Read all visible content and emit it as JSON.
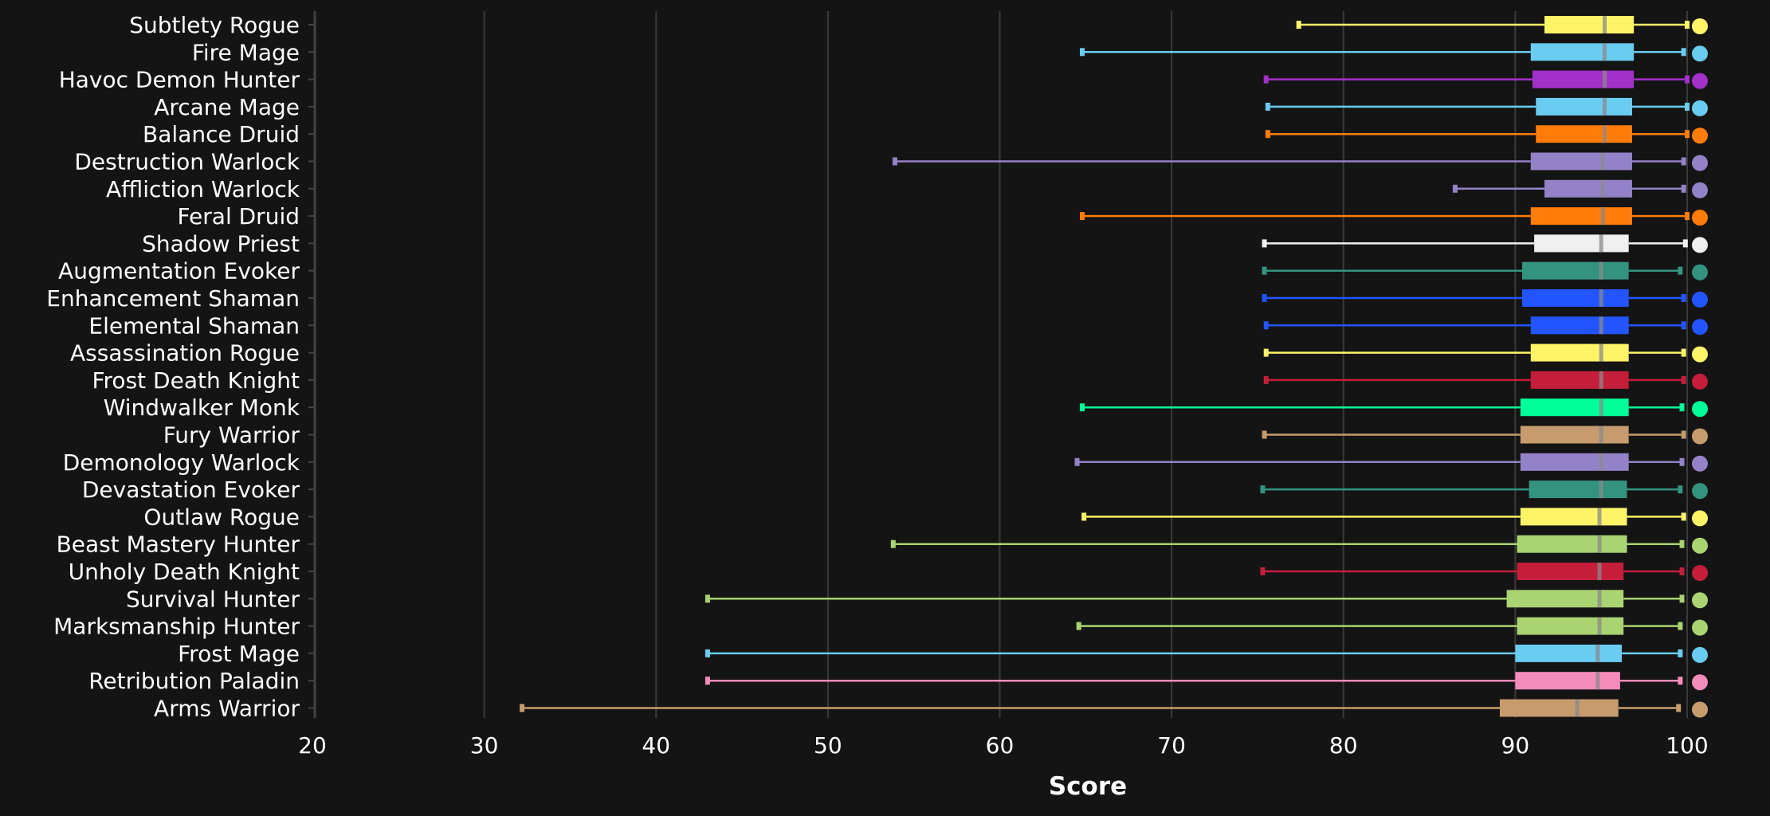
{
  "chart_data": {
    "type": "boxplot",
    "orientation": "horizontal",
    "xlabel": "Score",
    "xlim": [
      20,
      100
    ],
    "xticks": [
      20,
      30,
      40,
      50,
      60,
      70,
      80,
      90,
      100
    ],
    "grid": "vertical",
    "median_color": "#8a8a8a",
    "series": [
      {
        "category": "Subtlety Rogue",
        "color": "#fff468",
        "min": 77.4,
        "q1": 91.7,
        "median": 95.2,
        "q3": 96.9,
        "max": 100.0
      },
      {
        "category": "Fire Mage",
        "color": "#69ccf0",
        "min": 64.8,
        "q1": 90.9,
        "median": 95.2,
        "q3": 96.9,
        "max": 99.8
      },
      {
        "category": "Havoc Demon Hunter",
        "color": "#a330c9",
        "min": 75.5,
        "q1": 91.0,
        "median": 95.2,
        "q3": 96.9,
        "max": 100.0
      },
      {
        "category": "Arcane Mage",
        "color": "#69ccf0",
        "min": 75.6,
        "q1": 91.2,
        "median": 95.2,
        "q3": 96.8,
        "max": 100.0
      },
      {
        "category": "Balance Druid",
        "color": "#ff7c0a",
        "min": 75.6,
        "q1": 91.2,
        "median": 95.2,
        "q3": 96.8,
        "max": 100.0
      },
      {
        "category": "Destruction Warlock",
        "color": "#9482c9",
        "min": 53.9,
        "q1": 90.9,
        "median": 95.1,
        "q3": 96.8,
        "max": 99.8
      },
      {
        "category": "Affliction Warlock",
        "color": "#9482c9",
        "min": 86.5,
        "q1": 91.7,
        "median": 95.1,
        "q3": 96.8,
        "max": 99.8
      },
      {
        "category": "Feral Druid",
        "color": "#ff7c0a",
        "min": 64.8,
        "q1": 90.9,
        "median": 95.1,
        "q3": 96.8,
        "max": 100.0
      },
      {
        "category": "Shadow Priest",
        "color": "#f0f0f0",
        "min": 75.4,
        "q1": 91.1,
        "median": 95.0,
        "q3": 96.6,
        "max": 99.9
      },
      {
        "category": "Augmentation Evoker",
        "color": "#33937f",
        "min": 75.4,
        "q1": 90.4,
        "median": 95.0,
        "q3": 96.6,
        "max": 99.6
      },
      {
        "category": "Enhancement Shaman",
        "color": "#2255ff",
        "min": 75.4,
        "q1": 90.4,
        "median": 95.0,
        "q3": 96.6,
        "max": 99.8
      },
      {
        "category": "Elemental Shaman",
        "color": "#2255ff",
        "min": 75.5,
        "q1": 90.9,
        "median": 95.0,
        "q3": 96.6,
        "max": 99.8
      },
      {
        "category": "Assassination Rogue",
        "color": "#fff468",
        "min": 75.5,
        "q1": 90.9,
        "median": 95.0,
        "q3": 96.6,
        "max": 99.8
      },
      {
        "category": "Frost Death Knight",
        "color": "#c41e3a",
        "min": 75.5,
        "q1": 90.9,
        "median": 95.0,
        "q3": 96.6,
        "max": 99.8
      },
      {
        "category": "Windwalker Monk",
        "color": "#00ff98",
        "min": 64.8,
        "q1": 90.3,
        "median": 95.0,
        "q3": 96.6,
        "max": 99.7
      },
      {
        "category": "Fury Warrior",
        "color": "#c69b6d",
        "min": 75.4,
        "q1": 90.3,
        "median": 95.0,
        "q3": 96.6,
        "max": 99.8
      },
      {
        "category": "Demonology Warlock",
        "color": "#9482c9",
        "min": 64.5,
        "q1": 90.3,
        "median": 95.0,
        "q3": 96.6,
        "max": 99.7
      },
      {
        "category": "Devastation Evoker",
        "color": "#33937f",
        "min": 75.3,
        "q1": 90.8,
        "median": 95.0,
        "q3": 96.5,
        "max": 99.6
      },
      {
        "category": "Outlaw Rogue",
        "color": "#fff468",
        "min": 64.9,
        "q1": 90.3,
        "median": 94.9,
        "q3": 96.5,
        "max": 99.8
      },
      {
        "category": "Beast Mastery Hunter",
        "color": "#aad372",
        "min": 53.8,
        "q1": 90.1,
        "median": 94.9,
        "q3": 96.5,
        "max": 99.7
      },
      {
        "category": "Unholy Death Knight",
        "color": "#c41e3a",
        "min": 75.3,
        "q1": 90.1,
        "median": 94.9,
        "q3": 96.3,
        "max": 99.7
      },
      {
        "category": "Survival Hunter",
        "color": "#aad372",
        "min": 43.0,
        "q1": 89.5,
        "median": 94.9,
        "q3": 96.3,
        "max": 99.7
      },
      {
        "category": "Marksmanship Hunter",
        "color": "#aad372",
        "min": 64.6,
        "q1": 90.1,
        "median": 94.9,
        "q3": 96.3,
        "max": 99.6
      },
      {
        "category": "Frost Mage",
        "color": "#69ccf0",
        "min": 43.0,
        "q1": 90.0,
        "median": 94.8,
        "q3": 96.2,
        "max": 99.6
      },
      {
        "category": "Retribution Paladin",
        "color": "#f48cba",
        "min": 43.0,
        "q1": 90.0,
        "median": 94.8,
        "q3": 96.1,
        "max": 99.6
      },
      {
        "category": "Arms Warrior",
        "color": "#c69b6d",
        "min": 32.2,
        "q1": 89.1,
        "median": 93.6,
        "q3": 96.0,
        "max": 99.5
      }
    ]
  }
}
